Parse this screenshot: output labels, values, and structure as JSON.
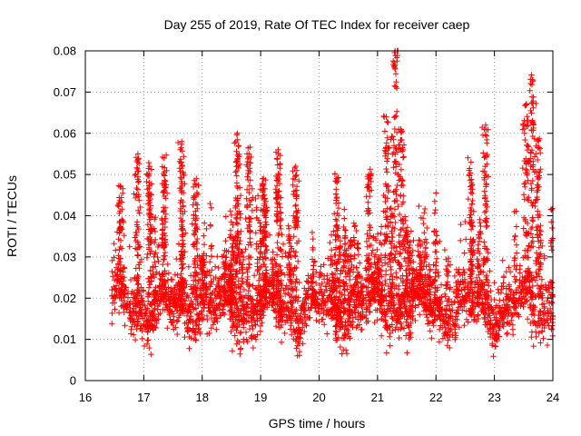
{
  "chart_data": {
    "type": "scatter",
    "title": "Day 255 of 2019, Rate Of TEC Index for receiver caep",
    "xlabel": "GPS time / hours",
    "ylabel": "ROTI / TECUs",
    "xlim": [
      16,
      24
    ],
    "ylim": [
      0,
      0.08
    ],
    "x_ticks": [
      16,
      17,
      18,
      19,
      20,
      21,
      22,
      23,
      24
    ],
    "x_tick_labels": [
      "16",
      "17",
      "18",
      "19",
      "20",
      "21",
      "22",
      "23",
      "24"
    ],
    "y_ticks": [
      0,
      0.01,
      0.02,
      0.03,
      0.04,
      0.05,
      0.06,
      0.07,
      0.08
    ],
    "y_tick_labels": [
      "0",
      "0.01",
      "0.02",
      "0.03",
      "0.04",
      "0.05",
      "0.06",
      "0.07",
      "0.08"
    ],
    "grid": true,
    "marker": "plus",
    "color": "#ff0000",
    "series": [
      {
        "name": "caep",
        "x_start": 16.45,
        "x_end": 24.0,
        "baseline_mean": 0.018,
        "baseline_spread": 0.008,
        "min": 0.004,
        "max": 0.08,
        "peaks": [
          {
            "x": 16.6,
            "y": 0.047
          },
          {
            "x": 16.9,
            "y": 0.055
          },
          {
            "x": 17.1,
            "y": 0.052
          },
          {
            "x": 17.35,
            "y": 0.054
          },
          {
            "x": 17.65,
            "y": 0.058
          },
          {
            "x": 17.9,
            "y": 0.049
          },
          {
            "x": 18.6,
            "y": 0.06
          },
          {
            "x": 18.8,
            "y": 0.055
          },
          {
            "x": 19.05,
            "y": 0.049
          },
          {
            "x": 19.3,
            "y": 0.056
          },
          {
            "x": 19.6,
            "y": 0.052
          },
          {
            "x": 20.3,
            "y": 0.049
          },
          {
            "x": 20.85,
            "y": 0.05
          },
          {
            "x": 21.15,
            "y": 0.064
          },
          {
            "x": 21.3,
            "y": 0.08
          },
          {
            "x": 21.4,
            "y": 0.061
          },
          {
            "x": 22.6,
            "y": 0.053
          },
          {
            "x": 22.85,
            "y": 0.062
          },
          {
            "x": 23.55,
            "y": 0.067
          },
          {
            "x": 23.65,
            "y": 0.073
          },
          {
            "x": 23.75,
            "y": 0.058
          }
        ]
      }
    ]
  }
}
